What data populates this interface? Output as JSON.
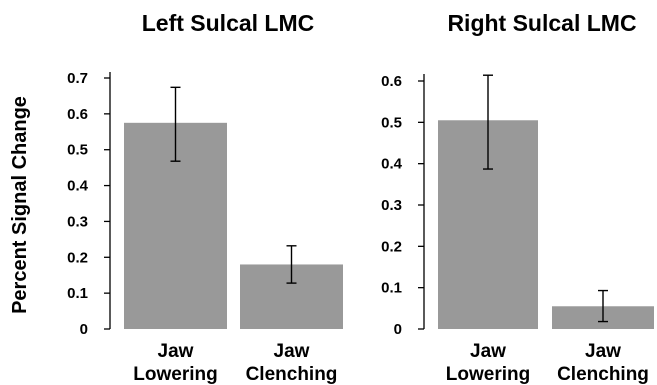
{
  "ylabel": "Percent Signal Change",
  "colors": {
    "bar": "#999999",
    "axis": "#000000",
    "background": "#ffffff"
  },
  "chart_data": [
    {
      "type": "bar",
      "title": "Left Sulcal LMC",
      "categories": [
        [
          "Jaw",
          "Lowering"
        ],
        [
          "Jaw",
          "Clenching"
        ]
      ],
      "values": [
        0.575,
        0.18
      ],
      "error_low": [
        0.468,
        0.128
      ],
      "error_high": [
        0.674,
        0.232
      ],
      "yticks": [
        "0",
        "0.1",
        "0.2",
        "0.3",
        "0.4",
        "0.5",
        "0.6",
        "0.7"
      ],
      "ylim": [
        0,
        0.7
      ],
      "grid": false,
      "xlabel": "",
      "ylabel": "Percent Signal Change"
    },
    {
      "type": "bar",
      "title": "Right Sulcal LMC",
      "categories": [
        [
          "Jaw",
          "Lowering"
        ],
        [
          "Jaw",
          "Clenching"
        ]
      ],
      "values": [
        0.505,
        0.055
      ],
      "error_low": [
        0.387,
        0.018
      ],
      "error_high": [
        0.614,
        0.093
      ],
      "yticks": [
        "0",
        "0.1",
        "0.2",
        "0.3",
        "0.4",
        "0.5",
        "0.6"
      ],
      "ylim": [
        0,
        0.6
      ],
      "grid": false,
      "xlabel": "",
      "ylabel": ""
    }
  ]
}
